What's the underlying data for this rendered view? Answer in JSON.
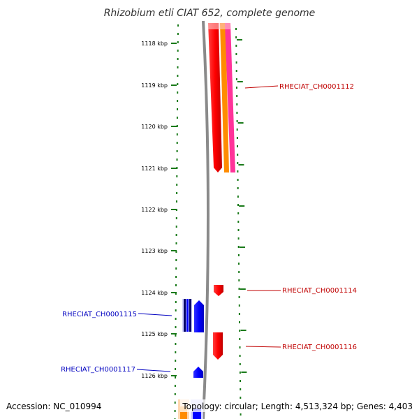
{
  "title": "Rhizobium etli CIAT 652, complete genome",
  "scale_labels": [
    "1118 kbp",
    "1119 kbp",
    "1120 kbp",
    "1121 kbp",
    "1122 kbp",
    "1123 kbp",
    "1124 kbp",
    "1125 kbp",
    "1126 kbp"
  ],
  "genes": {
    "g1112": "RHECIAT_CH0001112",
    "g1114": "RHECIAT_CH0001114",
    "g1115": "RHECIAT_CH0001115",
    "g1116": "RHECIAT_CH0001116",
    "g1117": "RHECIAT_CH0001117"
  },
  "footer": {
    "accession": "Accession: NC_010994",
    "stats": "Topology: circular; Length: 4,513,324 bp; Genes: 4,403"
  },
  "colors": {
    "scale": "#1a7a1a",
    "backbone": "#808080",
    "forward_gene": "#ff0000",
    "reverse_gene": "#0000ff",
    "label_forward": "#c00000",
    "label_reverse": "#0000c0"
  }
}
